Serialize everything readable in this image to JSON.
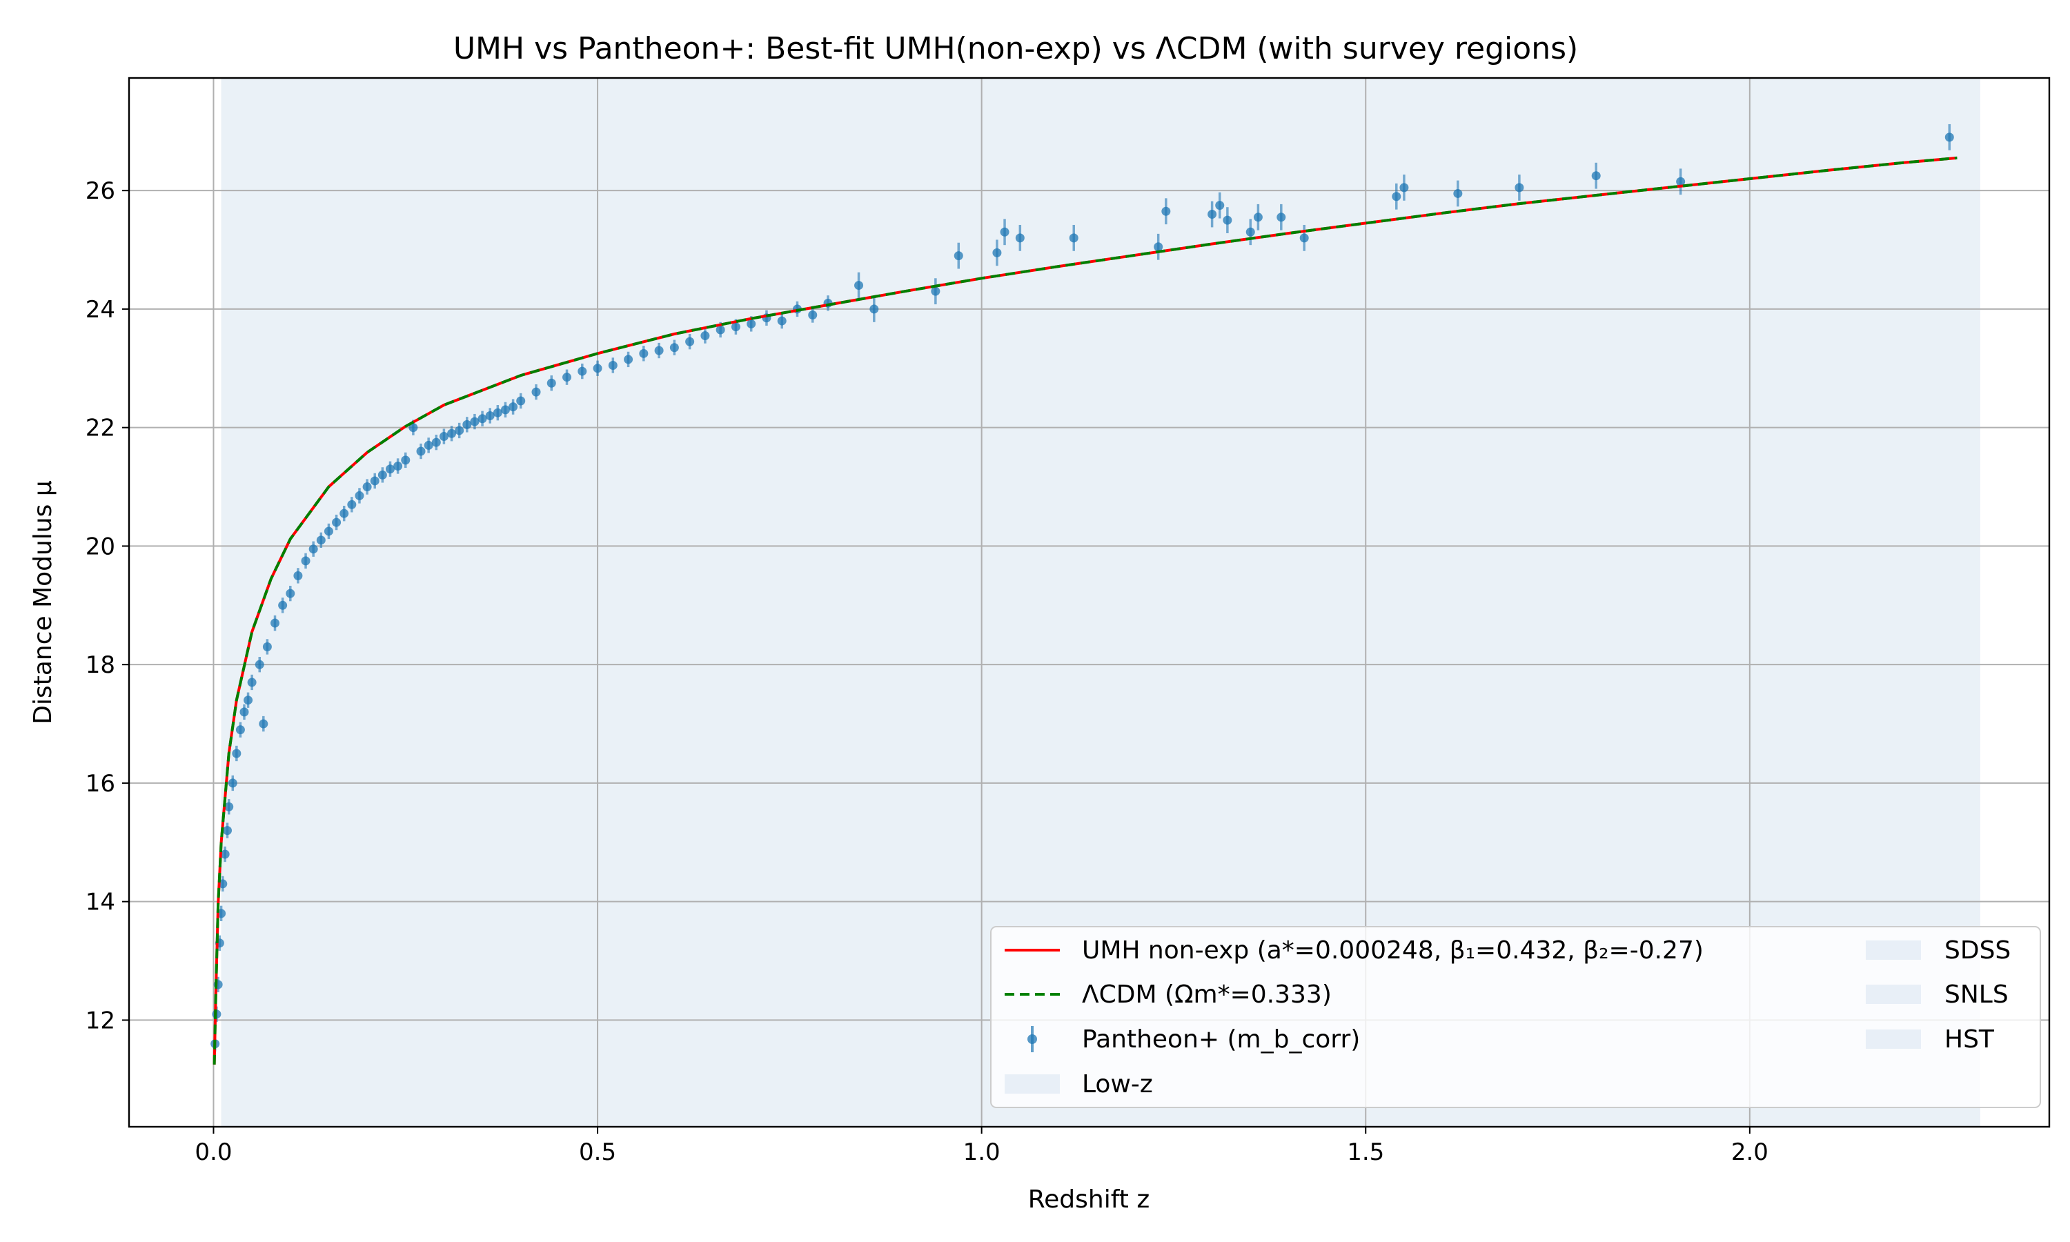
{
  "chart_data": {
    "type": "scatter",
    "title": "UMH vs Pantheon+: Best-fit UMH(non-exp) vs ΛCDM (with survey regions)",
    "xlabel": "Redshift z",
    "ylabel": "Distance Modulus μ",
    "xlim": [
      -0.11,
      2.39
    ],
    "ylim": [
      10.2,
      27.9
    ],
    "xticks": [
      0.0,
      0.5,
      1.0,
      1.5,
      2.0
    ],
    "xtick_labels": [
      "0.0",
      "0.5",
      "1.0",
      "1.5",
      "2.0"
    ],
    "yticks": [
      12,
      14,
      16,
      18,
      20,
      22,
      24,
      26
    ],
    "ytick_labels": [
      "12",
      "14",
      "16",
      "18",
      "20",
      "22",
      "24",
      "26"
    ],
    "grid": true,
    "legend_position": "lower-right",
    "survey_regions": [
      {
        "name": "Low-z",
        "x_range": [
          0.01,
          2.3
        ],
        "color": "#e8eff7"
      },
      {
        "name": "SDSS",
        "x_range": [
          0.01,
          2.3
        ],
        "color": "#e8eff7"
      },
      {
        "name": "SNLS",
        "x_range": [
          0.01,
          2.3
        ],
        "color": "#e8eff7"
      },
      {
        "name": "HST",
        "x_range": [
          0.01,
          2.3
        ],
        "color": "#e8eff7"
      }
    ],
    "series": [
      {
        "name": "UMH non-exp (a*=0.000248, β₁=0.432, β₂=-0.27)",
        "kind": "line",
        "style": "solid",
        "color": "#ff0000",
        "x": [
          0.001,
          0.003,
          0.006,
          0.01,
          0.02,
          0.03,
          0.05,
          0.075,
          0.1,
          0.15,
          0.2,
          0.25,
          0.3,
          0.4,
          0.5,
          0.6,
          0.7,
          0.8,
          0.9,
          1.0,
          1.1,
          1.2,
          1.3,
          1.4,
          1.5,
          1.6,
          1.7,
          1.8,
          1.9,
          2.0,
          2.1,
          2.2,
          2.27
        ],
        "y": [
          11.25,
          12.45,
          13.95,
          15.0,
          16.5,
          17.4,
          18.55,
          19.45,
          20.12,
          21.0,
          21.58,
          22.02,
          22.38,
          22.88,
          23.25,
          23.58,
          23.84,
          24.07,
          24.3,
          24.52,
          24.72,
          24.91,
          25.1,
          25.28,
          25.45,
          25.62,
          25.78,
          25.92,
          26.06,
          26.2,
          26.34,
          26.47,
          26.55
        ]
      },
      {
        "name": "ΛCDM (Ωm*=0.333)",
        "kind": "line",
        "style": "dashed",
        "color": "#008000",
        "x": [
          0.001,
          0.003,
          0.006,
          0.01,
          0.02,
          0.03,
          0.05,
          0.075,
          0.1,
          0.15,
          0.2,
          0.25,
          0.3,
          0.4,
          0.5,
          0.6,
          0.7,
          0.8,
          0.9,
          1.0,
          1.1,
          1.2,
          1.3,
          1.4,
          1.5,
          1.6,
          1.7,
          1.8,
          1.9,
          2.0,
          2.1,
          2.2,
          2.27
        ],
        "y": [
          11.25,
          12.45,
          13.95,
          15.0,
          16.5,
          17.4,
          18.55,
          19.45,
          20.12,
          21.0,
          21.58,
          22.02,
          22.38,
          22.88,
          23.25,
          23.58,
          23.84,
          24.07,
          24.3,
          24.52,
          24.72,
          24.91,
          25.1,
          25.28,
          25.45,
          25.62,
          25.78,
          25.92,
          26.06,
          26.2,
          26.34,
          26.47,
          26.55
        ]
      },
      {
        "name": "Pantheon+ (m_b_corr)",
        "kind": "errorbar",
        "color": "#1f77b4",
        "x": [
          0.002,
          0.004,
          0.006,
          0.008,
          0.01,
          0.012,
          0.015,
          0.018,
          0.02,
          0.025,
          0.03,
          0.035,
          0.04,
          0.045,
          0.05,
          0.06,
          0.065,
          0.07,
          0.08,
          0.09,
          0.1,
          0.11,
          0.12,
          0.13,
          0.14,
          0.15,
          0.16,
          0.17,
          0.18,
          0.19,
          0.2,
          0.21,
          0.22,
          0.23,
          0.24,
          0.25,
          0.26,
          0.27,
          0.28,
          0.29,
          0.3,
          0.31,
          0.32,
          0.33,
          0.34,
          0.35,
          0.36,
          0.37,
          0.38,
          0.39,
          0.4,
          0.42,
          0.44,
          0.46,
          0.48,
          0.5,
          0.52,
          0.54,
          0.56,
          0.58,
          0.6,
          0.62,
          0.64,
          0.66,
          0.68,
          0.7,
          0.72,
          0.74,
          0.76,
          0.78,
          0.8,
          0.84,
          0.86,
          0.94,
          0.97,
          1.02,
          1.03,
          1.05,
          1.12,
          1.23,
          1.24,
          1.3,
          1.31,
          1.32,
          1.35,
          1.36,
          1.39,
          1.42,
          1.54,
          1.55,
          1.62,
          1.7,
          1.8,
          1.91,
          2.26
        ],
        "y": [
          11.6,
          12.1,
          12.6,
          13.3,
          13.8,
          14.3,
          14.8,
          15.2,
          15.6,
          16.0,
          16.5,
          16.9,
          17.2,
          17.4,
          17.7,
          18.0,
          17.0,
          18.3,
          18.7,
          19.0,
          19.2,
          19.5,
          19.75,
          19.95,
          20.1,
          20.25,
          20.4,
          20.55,
          20.7,
          20.85,
          21.0,
          21.1,
          21.2,
          21.3,
          21.35,
          21.45,
          22.0,
          21.6,
          21.7,
          21.75,
          21.85,
          21.9,
          21.95,
          22.05,
          22.1,
          22.15,
          22.2,
          22.25,
          22.3,
          22.35,
          22.45,
          22.6,
          22.75,
          22.85,
          22.95,
          23.0,
          23.05,
          23.15,
          23.25,
          23.3,
          23.35,
          23.45,
          23.55,
          23.65,
          23.7,
          23.75,
          23.85,
          23.8,
          24.0,
          23.9,
          24.1,
          24.4,
          24.0,
          24.3,
          24.9,
          24.95,
          25.3,
          25.2,
          25.2,
          25.05,
          25.65,
          25.6,
          25.75,
          25.5,
          25.3,
          25.55,
          25.55,
          25.2,
          25.9,
          26.05,
          25.95,
          26.05,
          26.25,
          26.15,
          26.9
        ]
      }
    ]
  }
}
